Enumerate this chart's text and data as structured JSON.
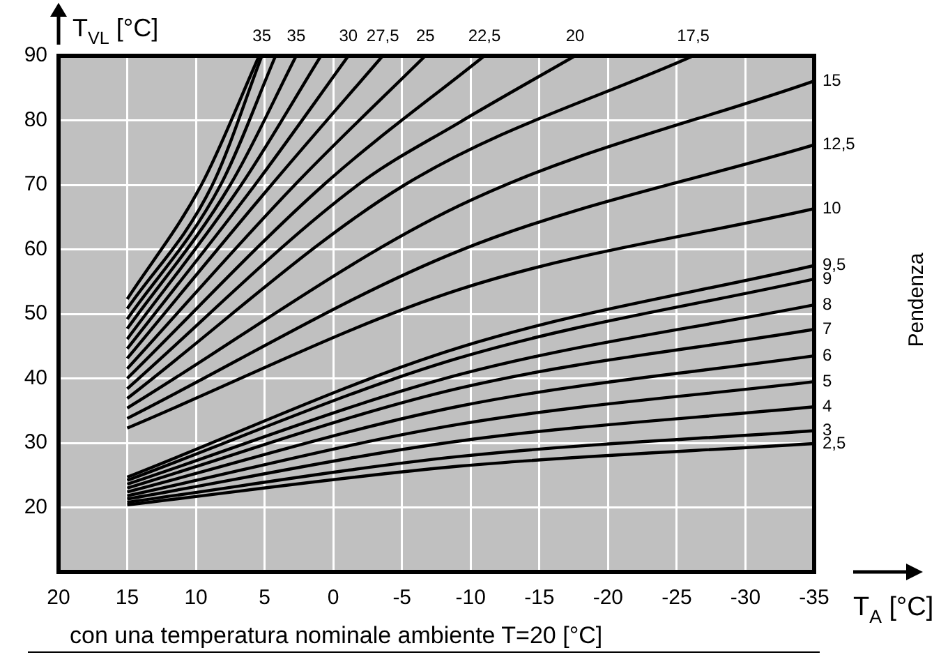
{
  "chart_data": {
    "type": "line",
    "xlabel": "T$_{A}$ [°C]",
    "ylabel": "T$_{VL}$ [°C]",
    "legend_title": "Pendenza",
    "annotations": [
      "con una temperatura nominale ambiente T=20 [°C]"
    ],
    "xlim": [
      20,
      -35
    ],
    "xticks": [
      20,
      15,
      10,
      5,
      0,
      -5,
      -10,
      -15,
      -20,
      -25,
      -30,
      -35
    ],
    "ylim": [
      10,
      90
    ],
    "yticks": [
      20,
      30,
      40,
      50,
      60,
      70,
      80,
      90
    ],
    "grid": true,
    "legend": false,
    "series": [
      {
        "color": "#000000",
        "x": [
          15,
          9.6,
          5.4
        ],
        "values": [
          52.3,
          70,
          90
        ]
      },
      {
        "name": "35",
        "color": "#000000",
        "x": [
          15,
          8.8,
          5.2
        ],
        "values": [
          50.8,
          70,
          90
        ]
      },
      {
        "color": "#000000",
        "x": [
          15,
          8.2,
          4.2
        ],
        "values": [
          49.2,
          70,
          90
        ]
      },
      {
        "name": "35",
        "color": "#000000",
        "x": [
          15,
          7.5,
          2.7
        ],
        "values": [
          47.7,
          70,
          90
        ]
      },
      {
        "color": "#000000",
        "x": [
          15,
          6.7,
          0.9
        ],
        "values": [
          46.1,
          70,
          90
        ]
      },
      {
        "name": "30",
        "color": "#000000",
        "x": [
          15,
          5.7,
          -1.1
        ],
        "values": [
          44.6,
          70,
          90
        ]
      },
      {
        "name": "27,5",
        "color": "#000000",
        "x": [
          15,
          4.5,
          -3.6
        ],
        "values": [
          43.1,
          70,
          90
        ]
      },
      {
        "name": "25",
        "color": "#000000",
        "x": [
          15,
          2.8,
          -6.7
        ],
        "values": [
          41.5,
          70,
          90
        ]
      },
      {
        "name": "22,5",
        "color": "#000000",
        "x": [
          15,
          0.7,
          -11
        ],
        "values": [
          40,
          70,
          90
        ]
      },
      {
        "name": "20",
        "color": "#000000",
        "x": [
          15,
          -1.8,
          -9.2,
          -17.6
        ],
        "values": [
          38.4,
          70,
          79.7,
          90
        ]
      },
      {
        "name": "17,5",
        "color": "#000000",
        "x": [
          15,
          -5.2,
          -26.2
        ],
        "values": [
          36.9,
          70,
          90
        ]
      },
      {
        "name": "15",
        "color": "#000000",
        "x": [
          15,
          -9.2,
          -35
        ],
        "values": [
          35.4,
          66.8,
          86.1
        ]
      },
      {
        "name": "12,5",
        "color": "#000000",
        "x": [
          15,
          -9.2,
          -35
        ],
        "values": [
          33.8,
          59.8,
          76.2
        ]
      },
      {
        "name": "10",
        "color": "#000000",
        "x": [
          15,
          -9.2,
          -35
        ],
        "values": [
          32.3,
          53.8,
          66.3
        ]
      },
      {
        "name": "9,5",
        "color": "#000000",
        "x": [
          15,
          -9.2,
          -35
        ],
        "values": [
          24.7,
          44.8,
          57.5
        ]
      },
      {
        "name": "9",
        "color": "#000000",
        "x": [
          15,
          -9.2,
          -35
        ],
        "values": [
          24.2,
          43.2,
          55.4
        ]
      },
      {
        "name": "8",
        "color": "#000000",
        "x": [
          15,
          -9.2,
          -35
        ],
        "values": [
          23.6,
          40.6,
          51.4
        ]
      },
      {
        "name": "7",
        "color": "#000000",
        "x": [
          15,
          -9.2,
          -35
        ],
        "values": [
          23,
          38.5,
          47.6
        ]
      },
      {
        "name": "6",
        "color": "#000000",
        "x": [
          15,
          -9.2,
          -35
        ],
        "values": [
          22.4,
          35.7,
          43.5
        ]
      },
      {
        "name": "5",
        "color": "#000000",
        "x": [
          15,
          -9.2,
          -35
        ],
        "values": [
          21.8,
          32.9,
          39.5
        ]
      },
      {
        "name": "4",
        "color": "#000000",
        "x": [
          15,
          -9.2,
          -35
        ],
        "values": [
          21.3,
          30.3,
          35.6
        ]
      },
      {
        "name": "3",
        "color": "#000000",
        "x": [
          15,
          -9.2,
          -35
        ],
        "values": [
          20.8,
          27.9,
          31.9
        ]
      },
      {
        "name": "2,5",
        "color": "#000000",
        "x": [
          15,
          -9.2,
          -35
        ],
        "values": [
          20.4,
          26.4,
          29.9
        ]
      }
    ]
  }
}
